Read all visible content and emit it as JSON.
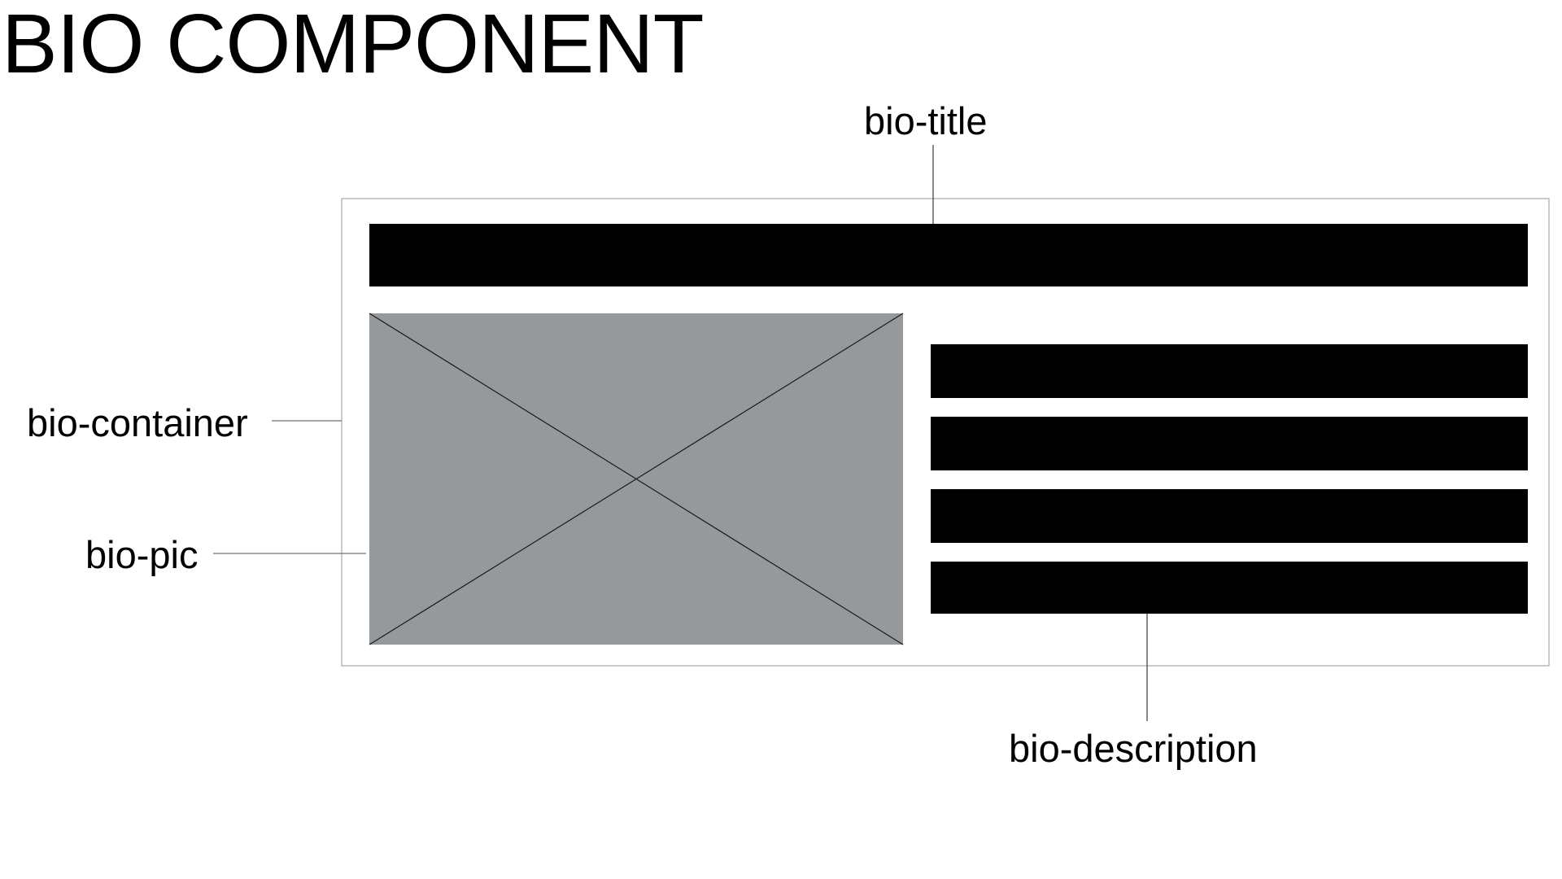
{
  "page": {
    "title": "BIO COMPONENT"
  },
  "labels": {
    "title": "bio-title",
    "container": "bio-container",
    "pic": "bio-pic",
    "description": "bio-description"
  },
  "colors": {
    "bar": "#000000",
    "pic_fill": "#96999b",
    "container_border": "#b9b9b9",
    "leader_line": "#8a8a8a"
  },
  "description_line_count": 4
}
